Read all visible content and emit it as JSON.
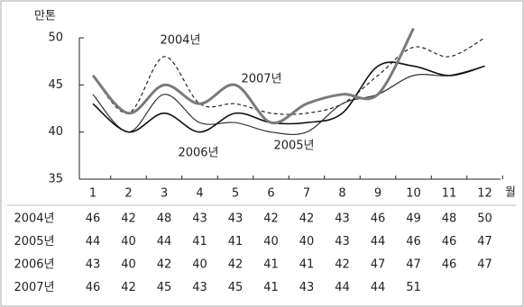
{
  "chart_data": {
    "type": "line",
    "y_label": "만톤",
    "x_label": "월",
    "categories": [
      "1",
      "2",
      "3",
      "4",
      "5",
      "6",
      "7",
      "8",
      "9",
      "10",
      "11",
      "12"
    ],
    "ylim": [
      35,
      50
    ],
    "yticks": [
      35,
      40,
      45,
      50
    ],
    "series": [
      {
        "name": "2004년",
        "color": "#222222",
        "dash": true,
        "width": 1.2,
        "values": [
          46,
          42,
          48,
          43,
          43,
          42,
          42,
          43,
          46,
          49,
          48,
          50
        ]
      },
      {
        "name": "2005년",
        "color": "#333333",
        "dash": false,
        "width": 1.2,
        "values": [
          44,
          40,
          44,
          41,
          41,
          40,
          40,
          43,
          44,
          46,
          46,
          47
        ]
      },
      {
        "name": "2006년",
        "color": "#111111",
        "dash": false,
        "width": 1.6,
        "values": [
          43,
          40,
          42,
          40,
          42,
          41,
          41,
          42,
          47,
          47,
          46,
          47
        ]
      },
      {
        "name": "2007년",
        "color": "#7a7a7a",
        "dash": false,
        "width": 3,
        "values": [
          46,
          42,
          45,
          43,
          45,
          41,
          43,
          44,
          44,
          51,
          null,
          null
        ]
      }
    ]
  }
}
